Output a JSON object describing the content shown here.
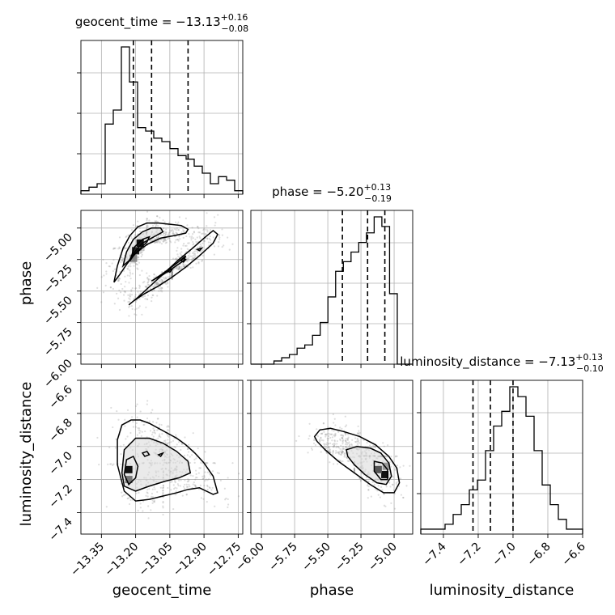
{
  "chart_data": {
    "type": "corner",
    "parameters": [
      "geocent_time",
      "phase",
      "luminosity_distance"
    ],
    "titles": [
      {
        "name": "geocent_time",
        "median": "−13.13",
        "plus": "+0.16",
        "minus": "−0.08"
      },
      {
        "name": "phase",
        "median": "−5.20",
        "plus": "+0.13",
        "minus": "−0.19"
      },
      {
        "name": "luminosity_distance",
        "median": "−7.13",
        "plus": "+0.13",
        "minus": "−0.10"
      }
    ],
    "axes": {
      "geocent_time": {
        "range": [
          -13.44,
          -12.73
        ],
        "ticks": [
          -13.35,
          -13.2,
          -13.05,
          -12.9,
          -12.75
        ],
        "tick_labels": [
          "−13.35",
          "−13.20",
          "−13.05",
          "−12.90",
          "−12.75"
        ]
      },
      "phase": {
        "range": [
          -6.08,
          -4.86
        ],
        "ticks": [
          -6.0,
          -5.75,
          -5.5,
          -5.25,
          -5.0
        ],
        "tick_labels": [
          "−6.00",
          "−5.75",
          "−5.50",
          "−5.25",
          "−5.00"
        ]
      },
      "luminosity_distance": {
        "range": [
          -7.53,
          -6.6
        ],
        "ticks": [
          -7.4,
          -7.2,
          -7.0,
          -6.8,
          -6.6
        ],
        "tick_labels": [
          "−7.4",
          "−7.2",
          "−7.0",
          "−6.8",
          "−6.6"
        ]
      }
    },
    "quantiles": {
      "geocent_time": [
        -13.21,
        -13.13,
        -12.97
      ],
      "phase": [
        -5.39,
        -5.2,
        -5.07
      ],
      "luminosity_distance": [
        -7.23,
        -7.13,
        -7.0
      ]
    },
    "histograms": {
      "geocent_time": {
        "range": [
          -13.44,
          -12.73
        ],
        "counts": [
          1,
          2,
          3,
          20,
          24,
          42,
          32,
          19,
          18,
          16,
          15,
          13,
          11,
          10,
          8,
          6,
          3,
          5,
          4,
          1
        ]
      },
      "phase": {
        "range": [
          -6.08,
          -4.86
        ],
        "counts": [
          0,
          0,
          0,
          1,
          2,
          3,
          5,
          6,
          9,
          13,
          21,
          29,
          32,
          35,
          38,
          41,
          46,
          43,
          22,
          0,
          0
        ]
      },
      "luminosity_distance": {
        "range": [
          -7.53,
          -6.6
        ],
        "counts": [
          1,
          1,
          1,
          2,
          4,
          6,
          9,
          11,
          17,
          22,
          25,
          30,
          28,
          24,
          17,
          10,
          6,
          3,
          1,
          1
        ]
      }
    },
    "contours_2d": {
      "geocent_time_phase": [
        {
          "level": "outer",
          "x": [
            -13.295,
            -13.28,
            -13.255,
            -13.225,
            -13.19,
            -13.15,
            -13.1,
            -13.05,
            -13.0,
            -12.97,
            -12.98,
            -13.03,
            -13.09,
            -13.15,
            -13.2,
            -13.24,
            -13.27,
            -13.295
          ],
          "y": [
            -5.43,
            -5.3,
            -5.16,
            -5.06,
            -4.99,
            -4.96,
            -4.96,
            -4.97,
            -4.98,
            -5.01,
            -5.04,
            -5.06,
            -5.08,
            -5.13,
            -5.2,
            -5.29,
            -5.37,
            -5.43
          ]
        },
        {
          "level": "middle",
          "x": [
            -13.255,
            -13.24,
            -13.21,
            -13.17,
            -13.13,
            -13.09,
            -13.08,
            -13.12,
            -13.17,
            -13.2,
            -13.23,
            -13.255
          ],
          "y": [
            -5.3,
            -5.19,
            -5.09,
            -5.03,
            -5.0,
            -5.0,
            -5.03,
            -5.07,
            -5.12,
            -5.18,
            -5.26,
            -5.3
          ]
        },
        {
          "level": "inner",
          "x": [
            -13.225,
            -13.205,
            -13.17,
            -13.14,
            -13.15,
            -13.18,
            -13.21,
            -13.225
          ],
          "y": [
            -5.26,
            -5.15,
            -5.09,
            -5.07,
            -5.11,
            -5.16,
            -5.22,
            -5.26
          ]
        },
        {
          "level": "outer",
          "x": [
            -13.23,
            -13.19,
            -13.13,
            -13.07,
            -13.01,
            -12.95,
            -12.9,
            -12.86,
            -12.84,
            -12.86,
            -12.92,
            -12.98,
            -13.04,
            -13.1,
            -13.16,
            -13.21,
            -13.23
          ],
          "y": [
            -5.61,
            -5.55,
            -5.45,
            -5.35,
            -5.25,
            -5.16,
            -5.08,
            -5.02,
            -5.05,
            -5.12,
            -5.22,
            -5.31,
            -5.39,
            -5.46,
            -5.52,
            -5.58,
            -5.61
          ]
        },
        {
          "level": "middle",
          "x": [
            -13.13,
            -13.08,
            -13.02,
            -12.98,
            -12.99,
            -13.03,
            -13.08,
            -13.12,
            -13.13
          ],
          "y": [
            -5.42,
            -5.36,
            -5.28,
            -5.22,
            -5.26,
            -5.31,
            -5.37,
            -5.41,
            -5.42
          ]
        },
        {
          "level": "inner",
          "x": [
            -13.06,
            -13.05,
            -13.04,
            -13.05,
            -13.06
          ],
          "y": [
            -5.34,
            -5.32,
            -5.33,
            -5.35,
            -5.34
          ]
        },
        {
          "level": "inner",
          "x": [
            -13.0,
            -12.99,
            -12.98,
            -12.99,
            -13.0
          ],
          "y": [
            -5.26,
            -5.24,
            -5.25,
            -5.27,
            -5.26
          ]
        },
        {
          "level": "inner",
          "x": [
            -12.93,
            -12.91,
            -12.92,
            -12.93
          ],
          "y": [
            -5.17,
            -5.16,
            -5.18,
            -5.17
          ]
        }
      ],
      "geocent_time_luminosity_distance": [
        {
          "level": "outer",
          "x": [
            -13.28,
            -13.28,
            -13.26,
            -13.22,
            -13.18,
            -13.14,
            -13.1,
            -13.06,
            -13.02,
            -12.98,
            -12.94,
            -12.9,
            -12.86,
            -12.84,
            -12.86,
            -12.92,
            -12.97,
            -13.02,
            -13.08,
            -13.14,
            -13.2,
            -13.25,
            -13.28
          ],
          "y": [
            -7.11,
            -6.96,
            -6.87,
            -6.84,
            -6.84,
            -6.86,
            -6.89,
            -6.92,
            -6.95,
            -6.99,
            -7.04,
            -7.1,
            -7.18,
            -7.28,
            -7.29,
            -7.25,
            -7.26,
            -7.28,
            -7.3,
            -7.32,
            -7.33,
            -7.27,
            -7.11
          ]
        },
        {
          "level": "middle",
          "x": [
            -13.26,
            -13.25,
            -13.2,
            -13.14,
            -13.08,
            -13.02,
            -12.97,
            -12.96,
            -13.01,
            -13.07,
            -13.14,
            -13.2,
            -13.25,
            -13.26
          ],
          "y": [
            -7.16,
            -7.02,
            -6.95,
            -6.95,
            -6.98,
            -7.03,
            -7.09,
            -7.16,
            -7.19,
            -7.21,
            -7.24,
            -7.27,
            -7.24,
            -7.16
          ]
        },
        {
          "level": "inner",
          "x": [
            -13.25,
            -13.24,
            -13.21,
            -13.19,
            -13.2,
            -13.23,
            -13.25
          ],
          "y": [
            -7.17,
            -7.08,
            -7.06,
            -7.12,
            -7.19,
            -7.23,
            -7.17
          ]
        },
        {
          "level": "inner",
          "x": [
            -13.17,
            -13.15,
            -13.14,
            -13.16,
            -13.17
          ],
          "y": [
            -7.04,
            -7.03,
            -7.05,
            -7.06,
            -7.04
          ]
        },
        {
          "level": "inner",
          "x": [
            -13.1,
            -13.08,
            -13.09,
            -13.1
          ],
          "y": [
            -7.05,
            -7.04,
            -7.06,
            -7.05
          ]
        }
      ],
      "phase_luminosity_distance": [
        {
          "level": "outer",
          "x": [
            -5.6,
            -5.56,
            -5.48,
            -5.38,
            -5.26,
            -5.14,
            -5.04,
            -4.98,
            -4.96,
            -5.0,
            -5.08,
            -5.18,
            -5.3,
            -5.42,
            -5.52,
            -5.58,
            -5.6
          ],
          "y": [
            -6.94,
            -6.9,
            -6.89,
            -6.91,
            -6.94,
            -6.99,
            -7.06,
            -7.13,
            -7.22,
            -7.28,
            -7.28,
            -7.23,
            -7.16,
            -7.09,
            -7.02,
            -6.97,
            -6.94
          ]
        },
        {
          "level": "middle",
          "x": [
            -5.36,
            -5.28,
            -5.18,
            -5.1,
            -5.04,
            -5.02,
            -5.06,
            -5.13,
            -5.22,
            -5.3,
            -5.35,
            -5.36
          ],
          "y": [
            -7.02,
            -7.0,
            -7.01,
            -7.04,
            -7.1,
            -7.18,
            -7.23,
            -7.22,
            -7.17,
            -7.11,
            -7.06,
            -7.02
          ]
        },
        {
          "level": "inner",
          "x": [
            -5.15,
            -5.09,
            -5.05,
            -5.05,
            -5.1,
            -5.15,
            -5.15
          ],
          "y": [
            -7.09,
            -7.1,
            -7.14,
            -7.2,
            -7.2,
            -7.15,
            -7.09
          ]
        }
      ]
    },
    "dense_cells": [
      {
        "pair": "geocent_time_phase",
        "x": -13.18,
        "y": -5.12,
        "shade": "#111111"
      },
      {
        "pair": "geocent_time_phase",
        "x": -13.2,
        "y": -5.18,
        "shade": "#222222"
      },
      {
        "pair": "geocent_time_phase",
        "x": -13.21,
        "y": -5.24,
        "shade": "#888888"
      },
      {
        "pair": "geocent_time_luminosity_distance",
        "x": -13.23,
        "y": -7.14,
        "shade": "#111111"
      },
      {
        "pair": "geocent_time_luminosity_distance",
        "x": -13.23,
        "y": -7.2,
        "shade": "#777777"
      },
      {
        "pair": "phase_luminosity_distance",
        "x": -5.07,
        "y": -7.17,
        "shade": "#111111"
      },
      {
        "pair": "phase_luminosity_distance",
        "x": -5.12,
        "y": -7.14,
        "shade": "#555555"
      },
      {
        "pair": "phase_luminosity_distance",
        "x": -5.06,
        "y": -7.12,
        "shade": "#999999"
      }
    ]
  }
}
